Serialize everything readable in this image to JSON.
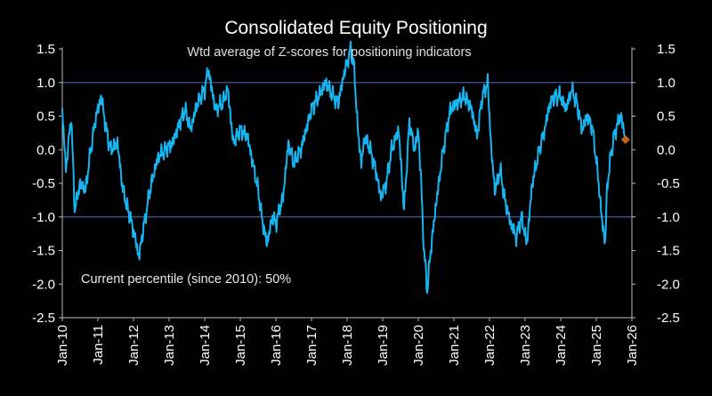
{
  "chart_data": {
    "type": "line",
    "title": "Consolidated Equity Positioning",
    "subtitle": "Wtd average of Z-scores for positioning indicators",
    "annotation": "Current percentile (since 2010): 50%",
    "xlabel": "",
    "ylabel": "",
    "ylim": [
      -2.5,
      1.5
    ],
    "yticks": [
      "1.5",
      "1.0",
      "0.5",
      "0.0",
      "-0.5",
      "-1.0",
      "-1.5",
      "-2.0",
      "-2.5"
    ],
    "xticks": [
      "Jan-10",
      "Jan-11",
      "Jan-12",
      "Jan-13",
      "Jan-14",
      "Jan-15",
      "Jan-16",
      "Jan-17",
      "Jan-18",
      "Jan-19",
      "Jan-20",
      "Jan-21",
      "Jan-22",
      "Jan-23",
      "Jan-24",
      "Jan-25",
      "Jan-26"
    ],
    "reference_lines": [
      1.0,
      -1.0
    ],
    "series": [
      {
        "name": "Consolidated Equity Positioning",
        "color": "#18b4f0",
        "x": [
          2010.0,
          2010.1,
          2010.25,
          2010.35,
          2010.5,
          2010.65,
          2010.8,
          2010.95,
          2011.1,
          2011.2,
          2011.35,
          2011.55,
          2011.7,
          2011.85,
          2012.0,
          2012.15,
          2012.3,
          2012.5,
          2012.7,
          2012.9,
          2013.1,
          2013.3,
          2013.45,
          2013.6,
          2013.8,
          2014.0,
          2014.1,
          2014.3,
          2014.5,
          2014.65,
          2014.8,
          2015.0,
          2015.2,
          2015.35,
          2015.5,
          2015.6,
          2015.75,
          2015.9,
          2016.0,
          2016.2,
          2016.35,
          2016.5,
          2016.7,
          2016.9,
          2017.0,
          2017.2,
          2017.4,
          2017.6,
          2017.75,
          2017.9,
          2018.0,
          2018.1,
          2018.2,
          2018.3,
          2018.4,
          2018.5,
          2018.65,
          2018.8,
          2018.95,
          2019.1,
          2019.25,
          2019.45,
          2019.6,
          2019.75,
          2019.9,
          2020.0,
          2020.08,
          2020.15,
          2020.25,
          2020.35,
          2020.5,
          2020.7,
          2020.9,
          2021.1,
          2021.3,
          2021.5,
          2021.65,
          2021.8,
          2021.95,
          2022.05,
          2022.15,
          2022.3,
          2022.45,
          2022.6,
          2022.75,
          2022.9,
          2023.05,
          2023.2,
          2023.4,
          2023.55,
          2023.7,
          2023.85,
          2024.0,
          2024.15,
          2024.3,
          2024.45,
          2024.6,
          2024.75,
          2024.9,
          2025.05,
          2025.15,
          2025.25,
          2025.3,
          2025.4,
          2025.5,
          2025.6,
          2025.7,
          2025.8
        ],
        "values": [
          0.6,
          -0.3,
          0.5,
          -0.9,
          -0.5,
          -0.6,
          0.0,
          0.5,
          0.8,
          0.4,
          0.0,
          0.1,
          -0.6,
          -0.9,
          -1.2,
          -1.6,
          -1.1,
          -0.5,
          -0.1,
          0.0,
          0.1,
          0.4,
          0.6,
          0.3,
          0.7,
          0.9,
          1.2,
          0.6,
          0.7,
          0.9,
          0.1,
          0.3,
          0.2,
          -0.2,
          -0.6,
          -1.0,
          -1.4,
          -1.0,
          -1.1,
          -0.7,
          0.1,
          -0.2,
          0.0,
          0.4,
          0.6,
          0.8,
          1.0,
          0.8,
          0.7,
          1.1,
          1.3,
          1.5,
          1.2,
          0.3,
          -0.2,
          0.2,
          0.0,
          -0.3,
          -0.7,
          -0.5,
          0.0,
          0.3,
          -0.9,
          0.4,
          0.0,
          0.3,
          -0.5,
          -1.4,
          -2.1,
          -1.5,
          -0.8,
          0.0,
          0.6,
          0.7,
          0.8,
          0.6,
          0.2,
          0.8,
          1.0,
          0.0,
          -0.6,
          -0.3,
          -0.8,
          -1.1,
          -1.3,
          -1.0,
          -1.4,
          -0.5,
          0.0,
          0.3,
          0.7,
          0.8,
          0.8,
          0.6,
          0.9,
          0.7,
          0.3,
          0.5,
          0.3,
          -0.4,
          -1.0,
          -1.4,
          -0.6,
          -0.1,
          0.2,
          0.4,
          0.5,
          0.2
        ]
      }
    ],
    "current_point": {
      "x": 2025.82,
      "value": 0.15,
      "color": "#c8641e"
    }
  }
}
